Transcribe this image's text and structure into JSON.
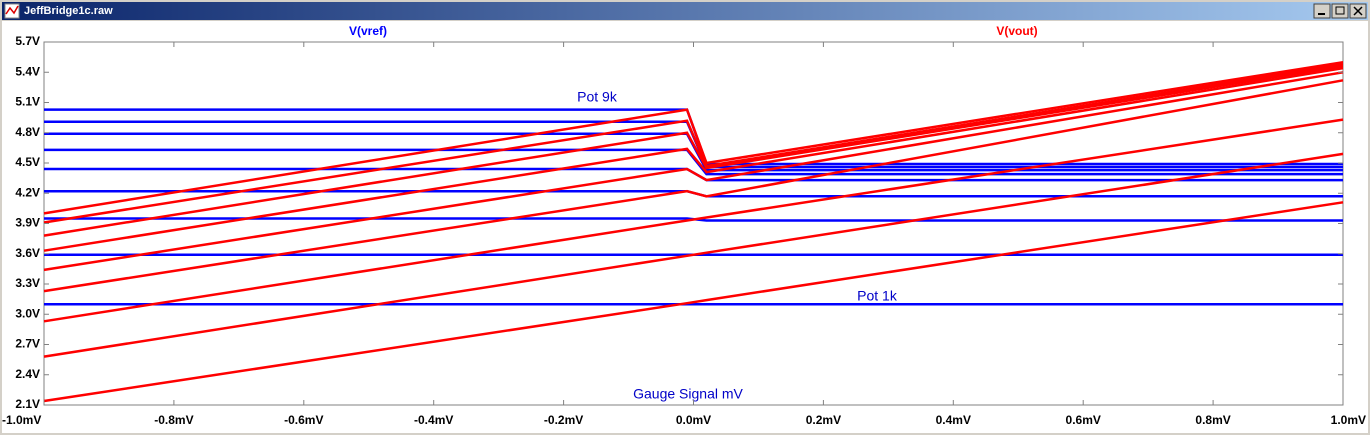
{
  "window": {
    "title": "JeffBridge1c.raw"
  },
  "chart_data": {
    "type": "line",
    "annotations": [
      "Pot 9k",
      "Pot 1k",
      "Gauge Signal mV"
    ],
    "x": [
      -1.0,
      -0.01,
      0.02,
      1.0
    ],
    "xlim": [
      -1.0,
      1.0
    ],
    "xticks": [
      {
        "value": -1.0,
        "label": "-1.0mV"
      },
      {
        "value": -0.8,
        "label": "-0.8mV"
      },
      {
        "value": -0.6,
        "label": "-0.6mV"
      },
      {
        "value": -0.4,
        "label": "-0.4mV"
      },
      {
        "value": -0.2,
        "label": "-0.2mV"
      },
      {
        "value": 0.0,
        "label": "0.0mV"
      },
      {
        "value": 0.2,
        "label": "0.2mV"
      },
      {
        "value": 0.4,
        "label": "0.4mV"
      },
      {
        "value": 0.6,
        "label": "0.6mV"
      },
      {
        "value": 0.8,
        "label": "0.8mV"
      },
      {
        "value": 1.0,
        "label": "1.0mV"
      }
    ],
    "ylim": [
      2.1,
      5.7
    ],
    "yticks": [
      {
        "value": 2.1,
        "label": "2.1V"
      },
      {
        "value": 2.4,
        "label": "2.4V"
      },
      {
        "value": 2.7,
        "label": "2.7V"
      },
      {
        "value": 3.0,
        "label": "3.0V"
      },
      {
        "value": 3.3,
        "label": "3.3V"
      },
      {
        "value": 3.6,
        "label": "3.6V"
      },
      {
        "value": 3.9,
        "label": "3.9V"
      },
      {
        "value": 4.2,
        "label": "4.2V"
      },
      {
        "value": 4.5,
        "label": "4.5V"
      },
      {
        "value": 4.8,
        "label": "4.8V"
      },
      {
        "value": 5.1,
        "label": "5.1V"
      },
      {
        "value": 5.4,
        "label": "5.4V"
      },
      {
        "value": 5.7,
        "label": "5.7V"
      }
    ],
    "grid": false,
    "series": [
      {
        "name": "V(vref)",
        "color": "#0000ff",
        "traces": [
          [
            5.03,
            5.03,
            4.49,
            4.49
          ],
          [
            4.91,
            4.91,
            4.46,
            4.46
          ],
          [
            4.79,
            4.79,
            4.43,
            4.43
          ],
          [
            4.63,
            4.63,
            4.39,
            4.39
          ],
          [
            4.44,
            4.44,
            4.33,
            4.33
          ],
          [
            4.22,
            4.22,
            4.17,
            4.17
          ],
          [
            3.95,
            3.95,
            3.93,
            3.93
          ],
          [
            3.59,
            3.59,
            3.59,
            3.59
          ],
          [
            3.1,
            3.1,
            3.1,
            3.1
          ]
        ]
      },
      {
        "name": "V(vout)",
        "color": "#ff0000",
        "traces": [
          [
            4.0,
            5.03,
            4.5,
            5.5
          ],
          [
            3.91,
            4.92,
            4.47,
            5.48
          ],
          [
            3.78,
            4.8,
            4.45,
            5.46
          ],
          [
            3.63,
            4.64,
            4.41,
            5.44
          ],
          [
            3.44,
            4.44,
            4.33,
            5.4
          ],
          [
            3.23,
            4.22,
            4.17,
            5.32
          ],
          [
            2.93,
            3.93,
            3.96,
            4.93
          ],
          [
            2.58,
            3.58,
            3.61,
            4.59
          ],
          [
            2.14,
            3.11,
            3.14,
            4.11
          ]
        ]
      }
    ]
  }
}
